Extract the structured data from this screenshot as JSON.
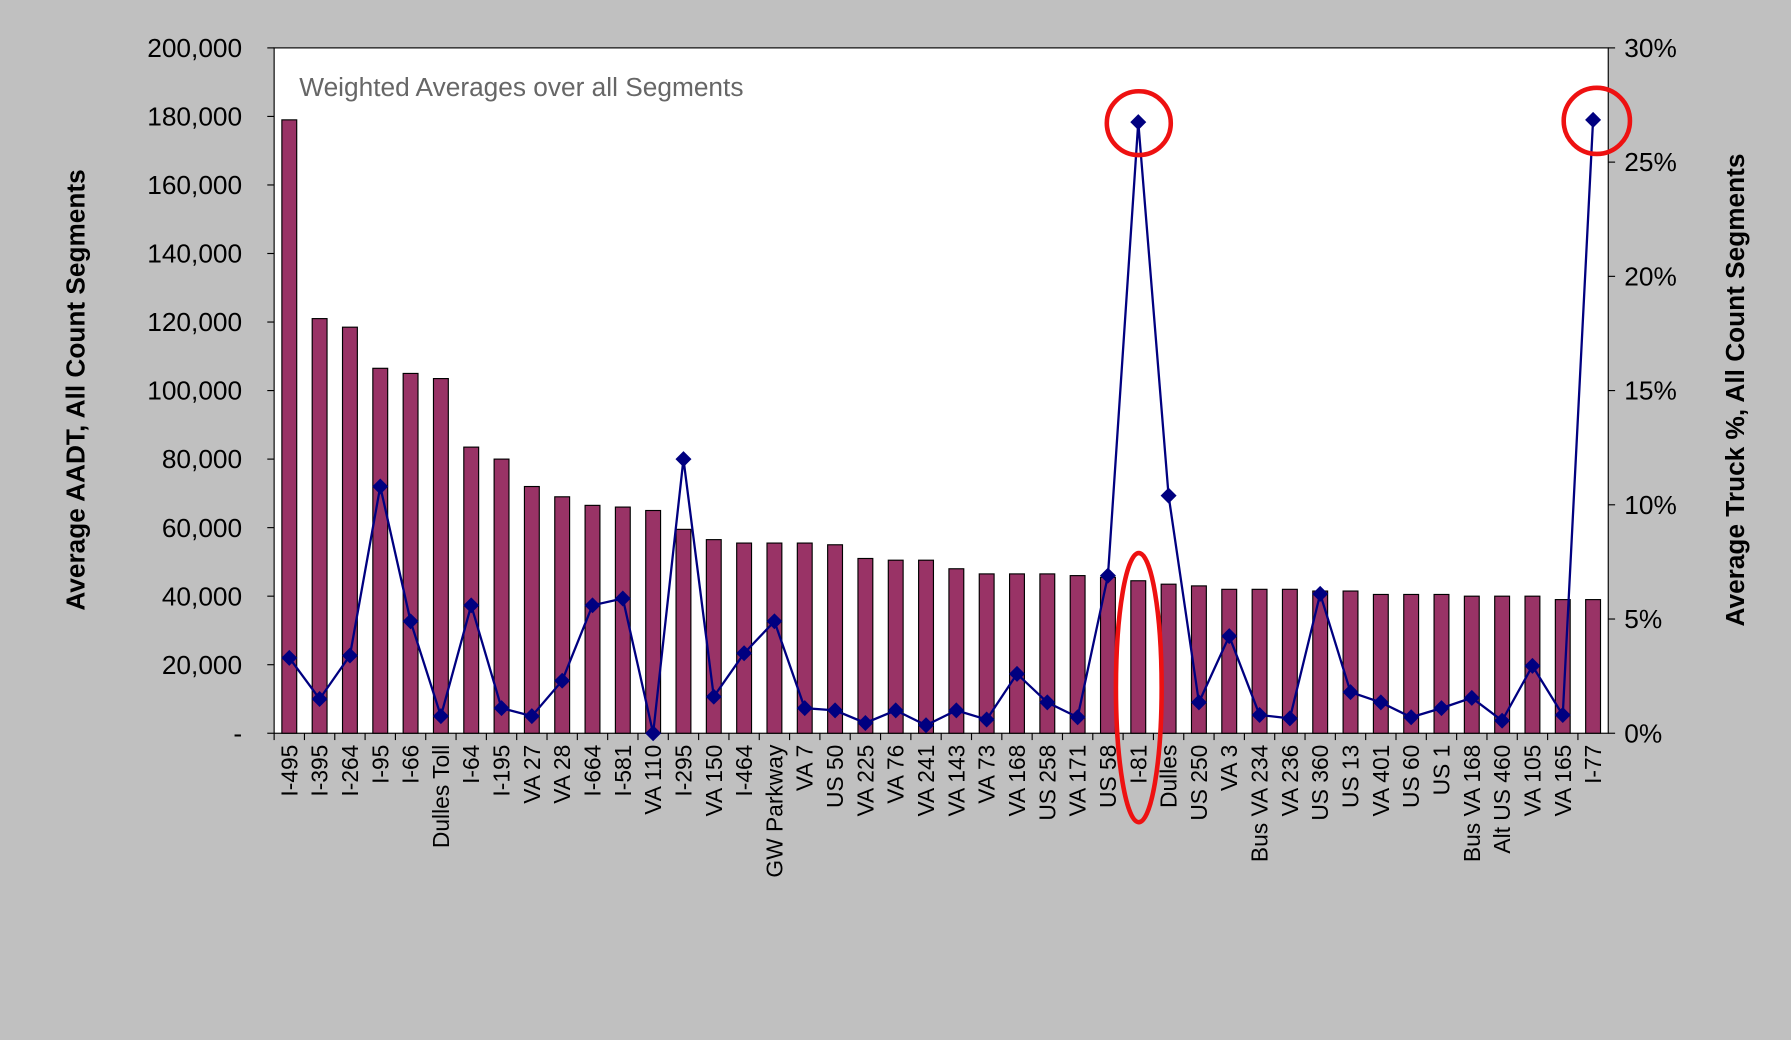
{
  "chart_data": {
    "type": "bar-line",
    "annotation": "Weighted Averages over all Segments",
    "y_label": "Average AADT, All Count Segments",
    "y2_label": "Average Truck %, All Count Segments",
    "categories": [
      "I-495",
      "I-395",
      "I-264",
      "I-95",
      "I-66",
      "Dulles Toll",
      "I-64",
      "I-195",
      "VA 27",
      "VA 28",
      "I-664",
      "I-581",
      "VA 110",
      "I-295",
      "VA 150",
      "I-464",
      "GW Parkway",
      "VA 7",
      "US 50",
      "VA 225",
      "VA 76",
      "VA 241",
      "VA 143",
      "VA 73",
      "VA 168",
      "US 258",
      "VA 171",
      "US 58",
      "I-81",
      "Dulles",
      "US 250",
      "VA 3",
      "Bus VA 234",
      "VA 236",
      "US 360",
      "US 13",
      "VA 401",
      "US 60",
      "US 1",
      "Bus VA 168",
      "Alt US 460",
      "VA 105",
      "VA 165",
      "I-77"
    ],
    "series": [
      {
        "type": "bar",
        "color": "#993366",
        "values": [
          179000,
          121000,
          118500,
          106500,
          105000,
          103500,
          83500,
          80000,
          72000,
          69000,
          66500,
          66000,
          65000,
          59500,
          56500,
          55500,
          55500,
          55500,
          55000,
          51000,
          50500,
          50500,
          48000,
          46500,
          46500,
          46500,
          46000,
          45500,
          44500,
          43500,
          43000,
          42000,
          42000,
          42000,
          41500,
          41500,
          40500,
          40500,
          40500,
          40000,
          40000,
          40000,
          39000,
          39000
        ]
      },
      {
        "type": "line",
        "axis": "y2",
        "color": "#000080",
        "values": [
          3.3,
          1.5,
          3.4,
          10.8,
          4.9,
          0.75,
          5.6,
          1.1,
          0.75,
          2.3,
          5.6,
          5.9,
          0,
          12.0,
          1.6,
          3.5,
          4.9,
          1.1,
          1.0,
          0.45,
          1.0,
          0.35,
          1.0,
          0.6,
          2.6,
          1.35,
          0.7,
          6.9,
          26.75,
          10.4,
          1.35,
          4.25,
          0.8,
          0.65,
          6.1,
          1.8,
          1.35,
          0.7,
          1.1,
          1.55,
          0.55,
          2.95,
          0.8,
          26.85
        ]
      }
    ],
    "ylim": [
      0,
      200000
    ],
    "yticks": [
      {
        "value": 0,
        "label": "-"
      },
      {
        "value": 20000,
        "label": "20,000"
      },
      {
        "value": 40000,
        "label": "40,000"
      },
      {
        "value": 60000,
        "label": "60,000"
      },
      {
        "value": 80000,
        "label": "80,000"
      },
      {
        "value": 100000,
        "label": "100,000"
      },
      {
        "value": 120000,
        "label": "120,000"
      },
      {
        "value": 140000,
        "label": "140,000"
      },
      {
        "value": 160000,
        "label": "160,000"
      },
      {
        "value": 180000,
        "label": "180,000"
      },
      {
        "value": 200000,
        "label": "200,000"
      }
    ],
    "y2lim": [
      0,
      30
    ],
    "y2ticks": [
      {
        "value": 0,
        "label": "0%"
      },
      {
        "value": 5,
        "label": "5%"
      },
      {
        "value": 10,
        "label": "10%"
      },
      {
        "value": 15,
        "label": "15%"
      },
      {
        "value": 20,
        "label": "20%"
      },
      {
        "value": 25,
        "label": "25%"
      },
      {
        "value": 30,
        "label": "30%"
      }
    ]
  }
}
